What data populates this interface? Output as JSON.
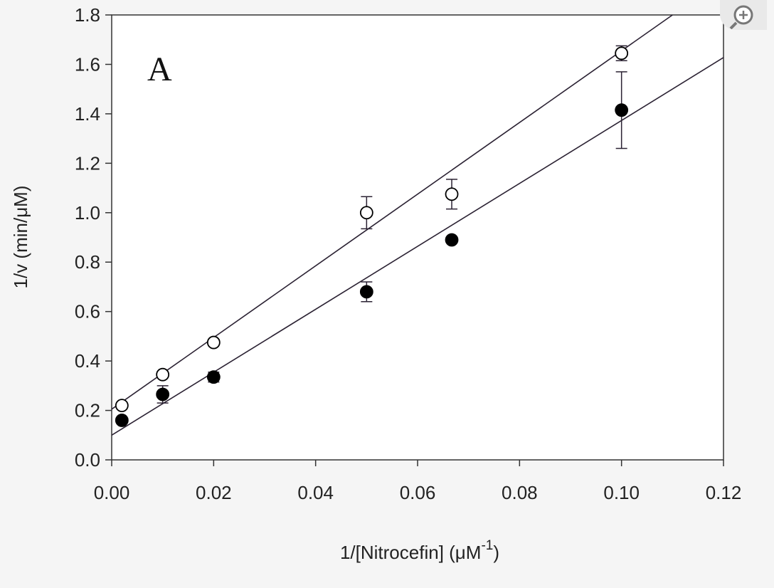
{
  "chart_data": {
    "type": "scatter",
    "panel_label": "A",
    "xlabel": {
      "main": "1/[Nitrocefin] (μM",
      "sup": "-1",
      "close": ")"
    },
    "ylabel": "1/v (min/μM)",
    "xlim": [
      0,
      0.12
    ],
    "ylim": [
      0,
      1.8
    ],
    "xticks": [
      "0.00",
      "0.02",
      "0.04",
      "0.06",
      "0.08",
      "0.10",
      "0.12"
    ],
    "yticks": [
      "0.0",
      "0.2",
      "0.4",
      "0.6",
      "0.8",
      "1.0",
      "1.2",
      "1.4",
      "1.6",
      "1.8"
    ],
    "grid": false,
    "series": [
      {
        "name": "open circles",
        "marker": "open",
        "x": [
          0.002,
          0.01,
          0.02,
          0.05,
          0.0667,
          0.1
        ],
        "y": [
          0.22,
          0.345,
          0.475,
          1.0,
          1.075,
          1.645
        ],
        "err": [
          0.0,
          0.01,
          0.01,
          0.065,
          0.06,
          0.03
        ],
        "fit": {
          "intercept": 0.205,
          "slope": 14.5
        }
      },
      {
        "name": "filled circles",
        "marker": "filled",
        "x": [
          0.002,
          0.01,
          0.02,
          0.05,
          0.0667,
          0.1
        ],
        "y": [
          0.16,
          0.265,
          0.335,
          0.68,
          0.89,
          1.415
        ],
        "err": [
          0.0,
          0.035,
          0.02,
          0.04,
          0.0,
          0.155
        ],
        "fit": {
          "intercept": 0.1,
          "slope": 12.73
        }
      }
    ]
  },
  "ui": {
    "zoom_icon": "zoom-in-icon"
  }
}
